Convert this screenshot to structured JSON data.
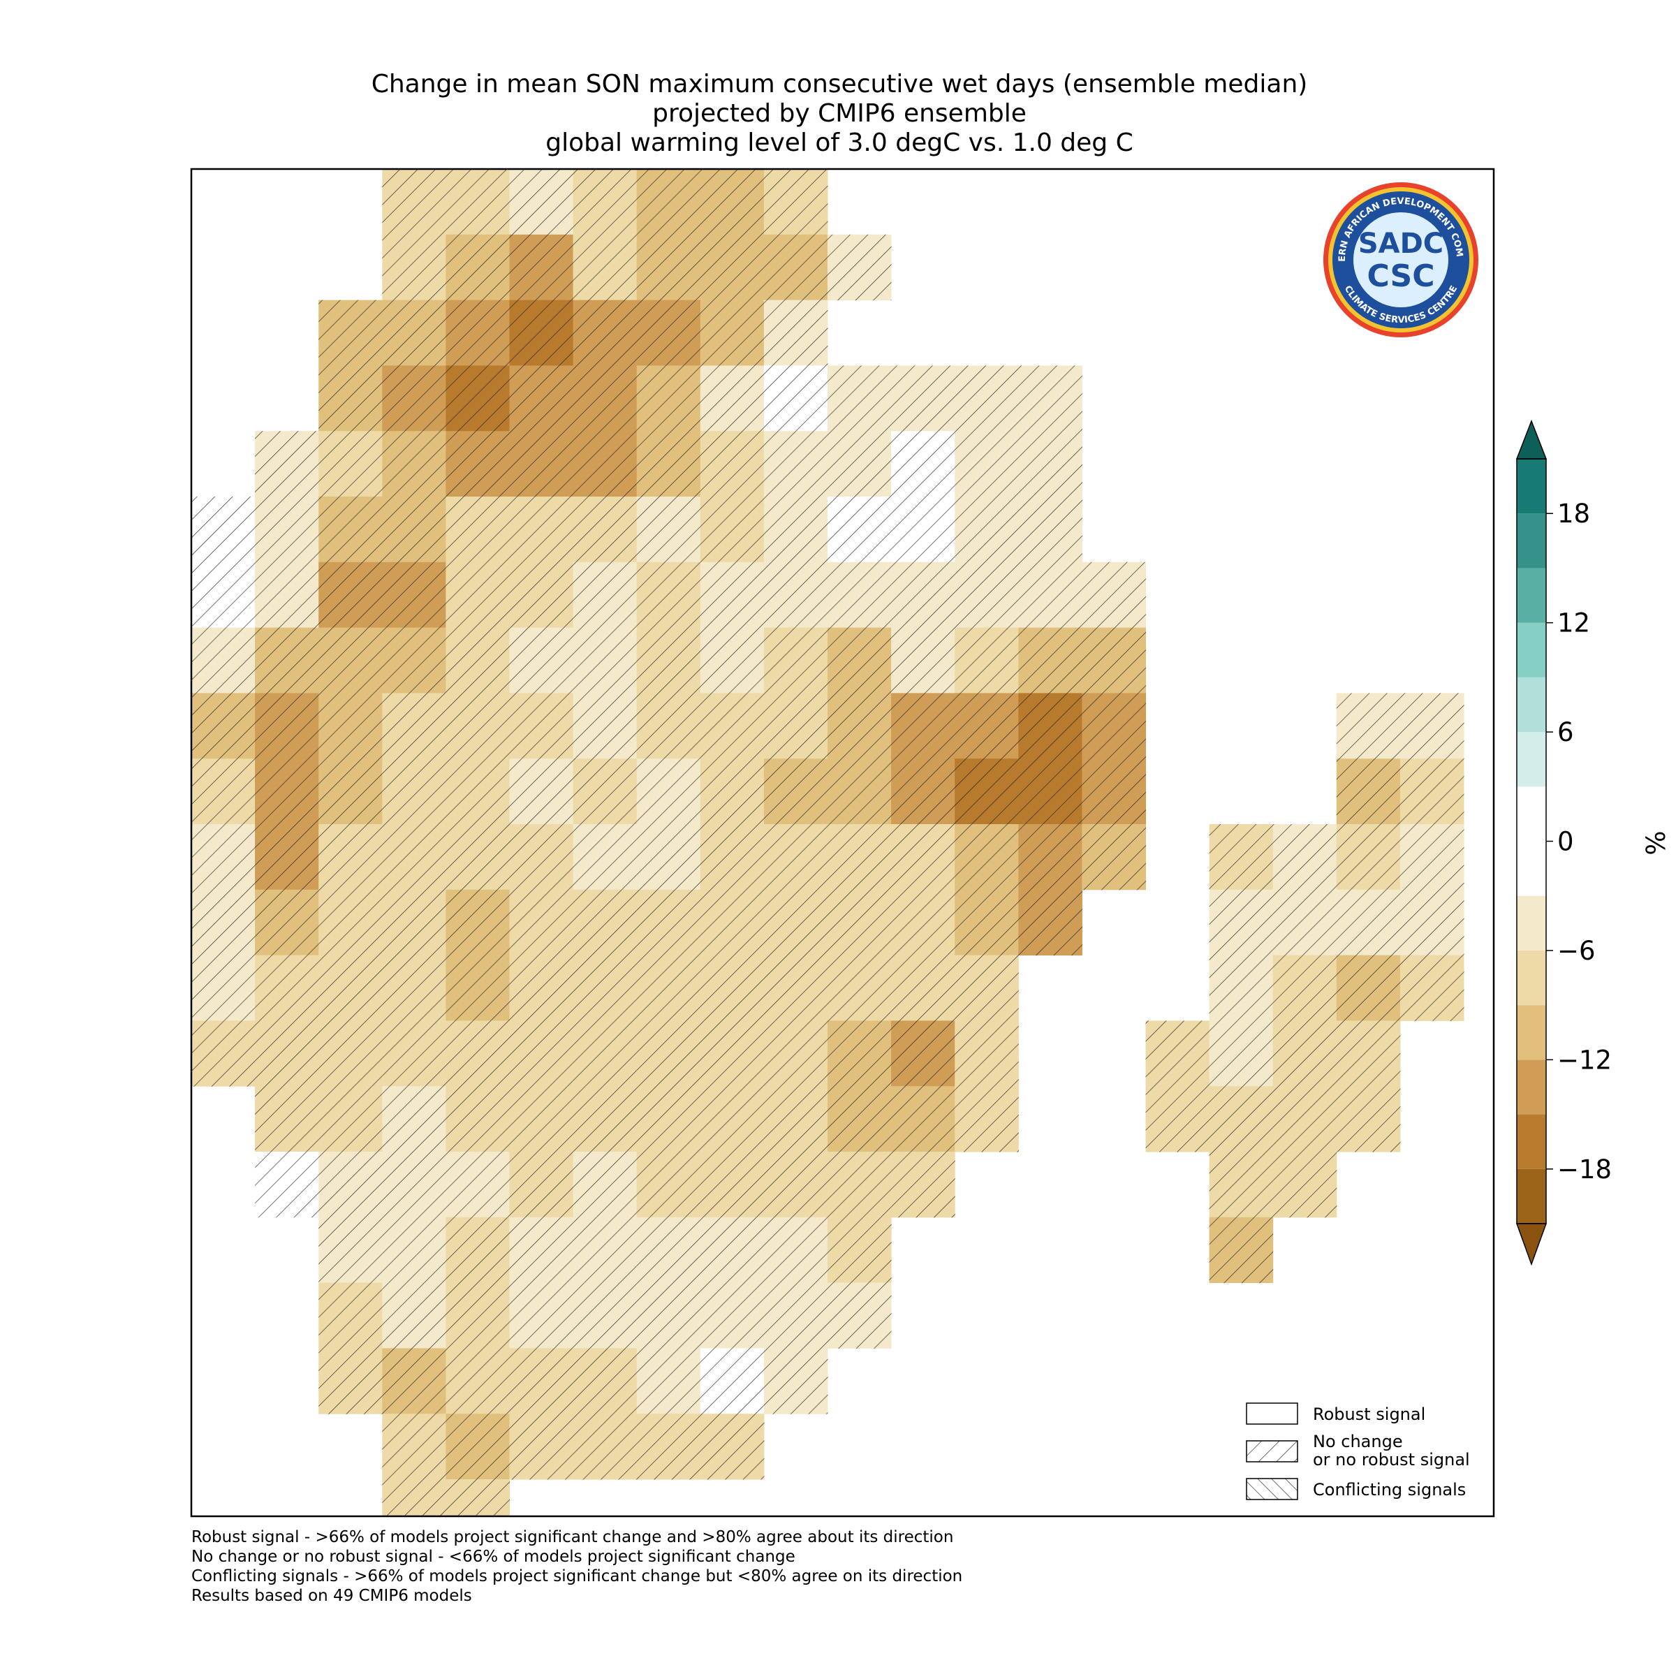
{
  "chart_data": {
    "type": "heatmap",
    "title": [
      "Change in mean SON maximum consecutive wet days (ensemble median)",
      "projected by CMIP6 ensemble",
      "global warming level of 3.0 degC vs. 1.0 deg C"
    ],
    "values": [
      [
        null,
        null,
        null,
        -8,
        -8,
        -6,
        -8,
        -10,
        -10,
        -8,
        null,
        null,
        null,
        null,
        null,
        null,
        null,
        null,
        null,
        null,
        null
      ],
      [
        null,
        null,
        null,
        -9,
        -12,
        -14,
        -8,
        -12,
        -10,
        -12,
        -6,
        null,
        null,
        null,
        null,
        null,
        null,
        null,
        null,
        null,
        null
      ],
      [
        null,
        null,
        -12,
        -12,
        -15,
        -16,
        -14,
        -14,
        -10,
        -5,
        null,
        null,
        null,
        null,
        null,
        null,
        null,
        null,
        null,
        null,
        null
      ],
      [
        null,
        null,
        -12,
        -14,
        -16,
        -15,
        -14,
        -12,
        -5,
        -3,
        -4,
        -5,
        -4,
        -5,
        null,
        null,
        null,
        null,
        null,
        null,
        null
      ],
      [
        null,
        -4,
        -8,
        -10,
        -13,
        -15,
        -14,
        -12,
        -7,
        -5,
        -4,
        -3,
        -4,
        -5,
        null,
        null,
        null,
        null,
        null,
        null,
        null
      ],
      [
        -2,
        -6,
        -10,
        -11,
        -7,
        -8,
        -8,
        -6,
        -7,
        -5,
        -3,
        -3,
        -4,
        -5,
        null,
        null,
        null,
        null,
        null,
        null,
        null
      ],
      [
        -3,
        -6,
        -14,
        -13,
        -8,
        -7,
        -6,
        -7,
        -5,
        -5,
        -6,
        -5,
        -4,
        -5,
        -6,
        null,
        null,
        null,
        null,
        null,
        null
      ],
      [
        -5,
        -10,
        -11,
        -10,
        -7,
        -6,
        -5,
        -7,
        -6,
        -8,
        -10,
        -6,
        -8,
        -10,
        -12,
        null,
        null,
        null,
        null,
        null,
        null
      ],
      [
        -10,
        -13,
        -12,
        -9,
        -8,
        -7,
        -6,
        -8,
        -7,
        -8,
        -12,
        -15,
        -15,
        -17,
        -14,
        null,
        null,
        null,
        -5,
        -6,
        null
      ],
      [
        -8,
        -15,
        -10,
        -8,
        -7,
        -6,
        -7,
        -6,
        -8,
        -12,
        -10,
        -13,
        -16,
        -17,
        -14,
        null,
        null,
        null,
        -12,
        -8,
        null
      ],
      [
        -6,
        -13,
        -9,
        -7,
        -8,
        -7,
        -6,
        -6,
        -7,
        -8,
        -7,
        -8,
        -11,
        -13,
        -12,
        null,
        -7,
        -6,
        -8,
        -6,
        null
      ],
      [
        -5,
        -12,
        -9,
        -8,
        -10,
        -7,
        -8,
        -7,
        -8,
        -8,
        -7,
        -8,
        -10,
        -14,
        null,
        null,
        -5,
        -4,
        -6,
        -5,
        null
      ],
      [
        -6,
        -9,
        -7,
        -7,
        -10,
        -7,
        -7,
        -8,
        -9,
        -8,
        -8,
        -9,
        -8,
        null,
        null,
        null,
        -6,
        -7,
        -12,
        -9,
        null
      ],
      [
        -8,
        -7,
        -7,
        -7,
        -8,
        -8,
        -7,
        -7,
        -8,
        -9,
        -10,
        -13,
        -8,
        null,
        null,
        -7,
        -6,
        -7,
        -9,
        null,
        null
      ],
      [
        null,
        -8,
        -7,
        -6,
        -7,
        -8,
        -7,
        -8,
        -7,
        -8,
        -10,
        -11,
        -8,
        null,
        null,
        -7,
        -8,
        -8,
        -8,
        null,
        null
      ],
      [
        null,
        -3,
        -5,
        -4,
        -6,
        -7,
        -6,
        -7,
        -8,
        -8,
        -8,
        -7,
        null,
        null,
        null,
        null,
        -9,
        -8,
        null,
        null,
        null
      ],
      [
        null,
        null,
        -5,
        -6,
        -7,
        -6,
        -6,
        -4,
        -5,
        -6,
        -7,
        null,
        null,
        null,
        null,
        null,
        -12,
        null,
        null,
        null,
        null
      ],
      [
        null,
        null,
        -8,
        -6,
        -7,
        -6,
        -5,
        -6,
        -4,
        -5,
        -5,
        null,
        null,
        null,
        null,
        null,
        null,
        null,
        null,
        null,
        null
      ],
      [
        null,
        null,
        -7,
        -10,
        -8,
        -7,
        -7,
        -5,
        -3,
        -5,
        null,
        null,
        null,
        null,
        null,
        null,
        null,
        null,
        null,
        null,
        null
      ],
      [
        null,
        null,
        null,
        -9,
        -11,
        -8,
        -8,
        -7,
        -7,
        null,
        null,
        null,
        null,
        null,
        null,
        null,
        null,
        null,
        null,
        null,
        null
      ],
      [
        null,
        null,
        null,
        -8,
        -8,
        null,
        null,
        null,
        null,
        null,
        null,
        null,
        null,
        null,
        null,
        null,
        null,
        null,
        null,
        null,
        null
      ]
    ],
    "levels": [
      -21,
      -18,
      -15,
      -12,
      -9,
      -6,
      -3,
      3,
      6,
      9,
      12,
      15,
      18,
      21
    ],
    "colors": [
      "#9c6419",
      "#b87a2c",
      "#cf9d55",
      "#e0c07c",
      "#eedaa6",
      "#f5e9cb",
      "#ffffff",
      "#d3eeea",
      "#b0e0d9",
      "#86cfc4",
      "#5aafa4",
      "#36918a",
      "#177a73"
    ],
    "extend_colors": [
      "#8a5410",
      "#0f5f59"
    ],
    "clim": [
      -21,
      21
    ],
    "cticks": [
      {
        "value": -18,
        "label": "−18"
      },
      {
        "value": -12,
        "label": "−12"
      },
      {
        "value": -6,
        "label": "−6"
      },
      0,
      6,
      12,
      18
    ],
    "colorbar_label": "%",
    "legend": [
      [
        "Robust signal"
      ],
      [
        "No change",
        "or no robust signal"
      ],
      [
        "Conflicting signals"
      ]
    ],
    "footnotes": [
      "Robust signal - >66% of models project significant change and >80% agree about its direction",
      "No change or no robust signal - <66% of models project significant change",
      "Conflicting signals - >66% of models project significant change but <80% agree on its direction",
      "Results based on 49 CMIP6 models"
    ],
    "logo": {
      "top": "SOUTHERN AFRICAN DEVELOPMENT COMMUNITY",
      "bottom": "CLIMATE SERVICES CENTRE",
      "line1": "SADC",
      "line2": "CSC"
    }
  }
}
